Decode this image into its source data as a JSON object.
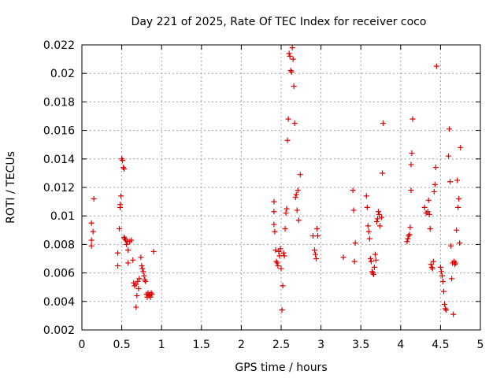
{
  "chart_data": {
    "type": "scatter",
    "title": "Day 221 of 2025, Rate Of TEC Index for receiver coco",
    "xlabel": "GPS time / hours",
    "ylabel": "ROTI / TECUs",
    "xlim": [
      0,
      5
    ],
    "ylim": [
      0.002,
      0.022
    ],
    "grid": true,
    "marker": "+",
    "color": "#dd0000",
    "xticks": [
      0,
      0.5,
      1,
      1.5,
      2,
      2.5,
      3,
      3.5,
      4,
      4.5,
      5
    ],
    "xtick_labels": [
      "0",
      "0.5",
      "1",
      "1.5",
      "2",
      "2.5",
      "3",
      "3.5",
      "4",
      "4.5",
      "5"
    ],
    "yticks": [
      0.002,
      0.004,
      0.006,
      0.008,
      0.01,
      0.012,
      0.014,
      0.016,
      0.018,
      0.02,
      0.022
    ],
    "ytick_labels": [
      "0.002",
      "0.004",
      "0.006",
      "0.008",
      "0.01",
      "0.012",
      "0.014",
      "0.016",
      "0.018",
      "0.02",
      "0.022"
    ],
    "points": [
      [
        0.12,
        0.0095
      ],
      [
        0.12,
        0.0083
      ],
      [
        0.12,
        0.0079
      ],
      [
        0.14,
        0.0089
      ],
      [
        0.15,
        0.0112
      ],
      [
        0.45,
        0.0065
      ],
      [
        0.45,
        0.0074
      ],
      [
        0.47,
        0.0091
      ],
      [
        0.48,
        0.0106
      ],
      [
        0.48,
        0.0108
      ],
      [
        0.49,
        0.0114
      ],
      [
        0.5,
        0.014
      ],
      [
        0.51,
        0.0139
      ],
      [
        0.52,
        0.0134
      ],
      [
        0.53,
        0.0133
      ],
      [
        0.53,
        0.0085
      ],
      [
        0.54,
        0.0084
      ],
      [
        0.55,
        0.0083
      ],
      [
        0.56,
        0.008
      ],
      [
        0.57,
        0.0082
      ],
      [
        0.58,
        0.0076
      ],
      [
        0.58,
        0.0067
      ],
      [
        0.6,
        0.0082
      ],
      [
        0.62,
        0.0083
      ],
      [
        0.64,
        0.0069
      ],
      [
        0.65,
        0.0053
      ],
      [
        0.66,
        0.0051
      ],
      [
        0.68,
        0.0052
      ],
      [
        0.68,
        0.0036
      ],
      [
        0.69,
        0.0044
      ],
      [
        0.7,
        0.0054
      ],
      [
        0.71,
        0.0049
      ],
      [
        0.72,
        0.0056
      ],
      [
        0.74,
        0.0071
      ],
      [
        0.75,
        0.0065
      ],
      [
        0.76,
        0.0063
      ],
      [
        0.77,
        0.0061
      ],
      [
        0.78,
        0.0058
      ],
      [
        0.79,
        0.0055
      ],
      [
        0.8,
        0.0054
      ],
      [
        0.81,
        0.0045
      ],
      [
        0.82,
        0.0043
      ],
      [
        0.83,
        0.0046
      ],
      [
        0.84,
        0.0044
      ],
      [
        0.85,
        0.0045
      ],
      [
        0.86,
        0.0043
      ],
      [
        0.87,
        0.0046
      ],
      [
        0.88,
        0.0045
      ],
      [
        0.9,
        0.0075
      ],
      [
        2.41,
        0.0103
      ],
      [
        2.41,
        0.011
      ],
      [
        2.41,
        0.0094
      ],
      [
        2.42,
        0.0089
      ],
      [
        2.43,
        0.0076
      ],
      [
        2.44,
        0.0068
      ],
      [
        2.45,
        0.0067
      ],
      [
        2.46,
        0.0065
      ],
      [
        2.47,
        0.0075
      ],
      [
        2.48,
        0.0072
      ],
      [
        2.49,
        0.0077
      ],
      [
        2.5,
        0.0063
      ],
      [
        2.51,
        0.0034
      ],
      [
        2.52,
        0.0051
      ],
      [
        2.53,
        0.0074
      ],
      [
        2.54,
        0.0072
      ],
      [
        2.55,
        0.0091
      ],
      [
        2.56,
        0.0102
      ],
      [
        2.57,
        0.0105
      ],
      [
        2.58,
        0.0153
      ],
      [
        2.59,
        0.0168
      ],
      [
        2.6,
        0.0214
      ],
      [
        2.61,
        0.0212
      ],
      [
        2.62,
        0.0202
      ],
      [
        2.63,
        0.0201
      ],
      [
        2.64,
        0.0218
      ],
      [
        2.65,
        0.021
      ],
      [
        2.66,
        0.0191
      ],
      [
        2.67,
        0.0165
      ],
      [
        2.68,
        0.0113
      ],
      [
        2.69,
        0.0115
      ],
      [
        2.7,
        0.0104
      ],
      [
        2.71,
        0.0118
      ],
      [
        2.72,
        0.0097
      ],
      [
        2.74,
        0.0129
      ],
      [
        2.9,
        0.0086
      ],
      [
        2.92,
        0.0076
      ],
      [
        2.93,
        0.0073
      ],
      [
        2.94,
        0.007
      ],
      [
        2.95,
        0.0091
      ],
      [
        2.96,
        0.0086
      ],
      [
        3.28,
        0.0071
      ],
      [
        3.4,
        0.0118
      ],
      [
        3.41,
        0.0104
      ],
      [
        3.42,
        0.0068
      ],
      [
        3.43,
        0.0081
      ],
      [
        3.57,
        0.0114
      ],
      [
        3.58,
        0.0106
      ],
      [
        3.59,
        0.0093
      ],
      [
        3.6,
        0.0089
      ],
      [
        3.61,
        0.0084
      ],
      [
        3.62,
        0.007
      ],
      [
        3.63,
        0.0068
      ],
      [
        3.64,
        0.0061
      ],
      [
        3.65,
        0.006
      ],
      [
        3.66,
        0.0059
      ],
      [
        3.67,
        0.0064
      ],
      [
        3.68,
        0.0073
      ],
      [
        3.69,
        0.0069
      ],
      [
        3.7,
        0.0096
      ],
      [
        3.71,
        0.0098
      ],
      [
        3.72,
        0.0103
      ],
      [
        3.73,
        0.0101
      ],
      [
        3.74,
        0.0093
      ],
      [
        3.76,
        0.0099
      ],
      [
        3.77,
        0.013
      ],
      [
        3.78,
        0.0165
      ],
      [
        4.08,
        0.0082
      ],
      [
        4.09,
        0.0084
      ],
      [
        4.1,
        0.0086
      ],
      [
        4.11,
        0.0087
      ],
      [
        4.12,
        0.0092
      ],
      [
        4.13,
        0.0118
      ],
      [
        4.13,
        0.0136
      ],
      [
        4.14,
        0.0144
      ],
      [
        4.15,
        0.0168
      ],
      [
        4.3,
        0.0106
      ],
      [
        4.32,
        0.0102
      ],
      [
        4.34,
        0.0103
      ],
      [
        4.35,
        0.0111
      ],
      [
        4.36,
        0.0101
      ],
      [
        4.37,
        0.0091
      ],
      [
        4.38,
        0.0066
      ],
      [
        4.39,
        0.0064
      ],
      [
        4.4,
        0.0063
      ],
      [
        4.41,
        0.0068
      ],
      [
        4.42,
        0.0117
      ],
      [
        4.43,
        0.0122
      ],
      [
        4.44,
        0.0134
      ],
      [
        4.45,
        0.0205
      ],
      [
        4.5,
        0.0064
      ],
      [
        4.51,
        0.0061
      ],
      [
        4.52,
        0.0058
      ],
      [
        4.53,
        0.0054
      ],
      [
        4.54,
        0.0047
      ],
      [
        4.55,
        0.0038
      ],
      [
        4.56,
        0.0035
      ],
      [
        4.57,
        0.0034
      ],
      [
        4.6,
        0.0142
      ],
      [
        4.61,
        0.0161
      ],
      [
        4.62,
        0.0124
      ],
      [
        4.63,
        0.0079
      ],
      [
        4.64,
        0.0056
      ],
      [
        4.65,
        0.0067
      ],
      [
        4.66,
        0.0031
      ],
      [
        4.67,
        0.0068
      ],
      [
        4.68,
        0.0066
      ],
      [
        4.69,
        0.0067
      ],
      [
        4.7,
        0.009
      ],
      [
        4.71,
        0.0125
      ],
      [
        4.72,
        0.0106
      ],
      [
        4.73,
        0.0112
      ],
      [
        4.74,
        0.0081
      ],
      [
        4.75,
        0.0148
      ]
    ]
  }
}
